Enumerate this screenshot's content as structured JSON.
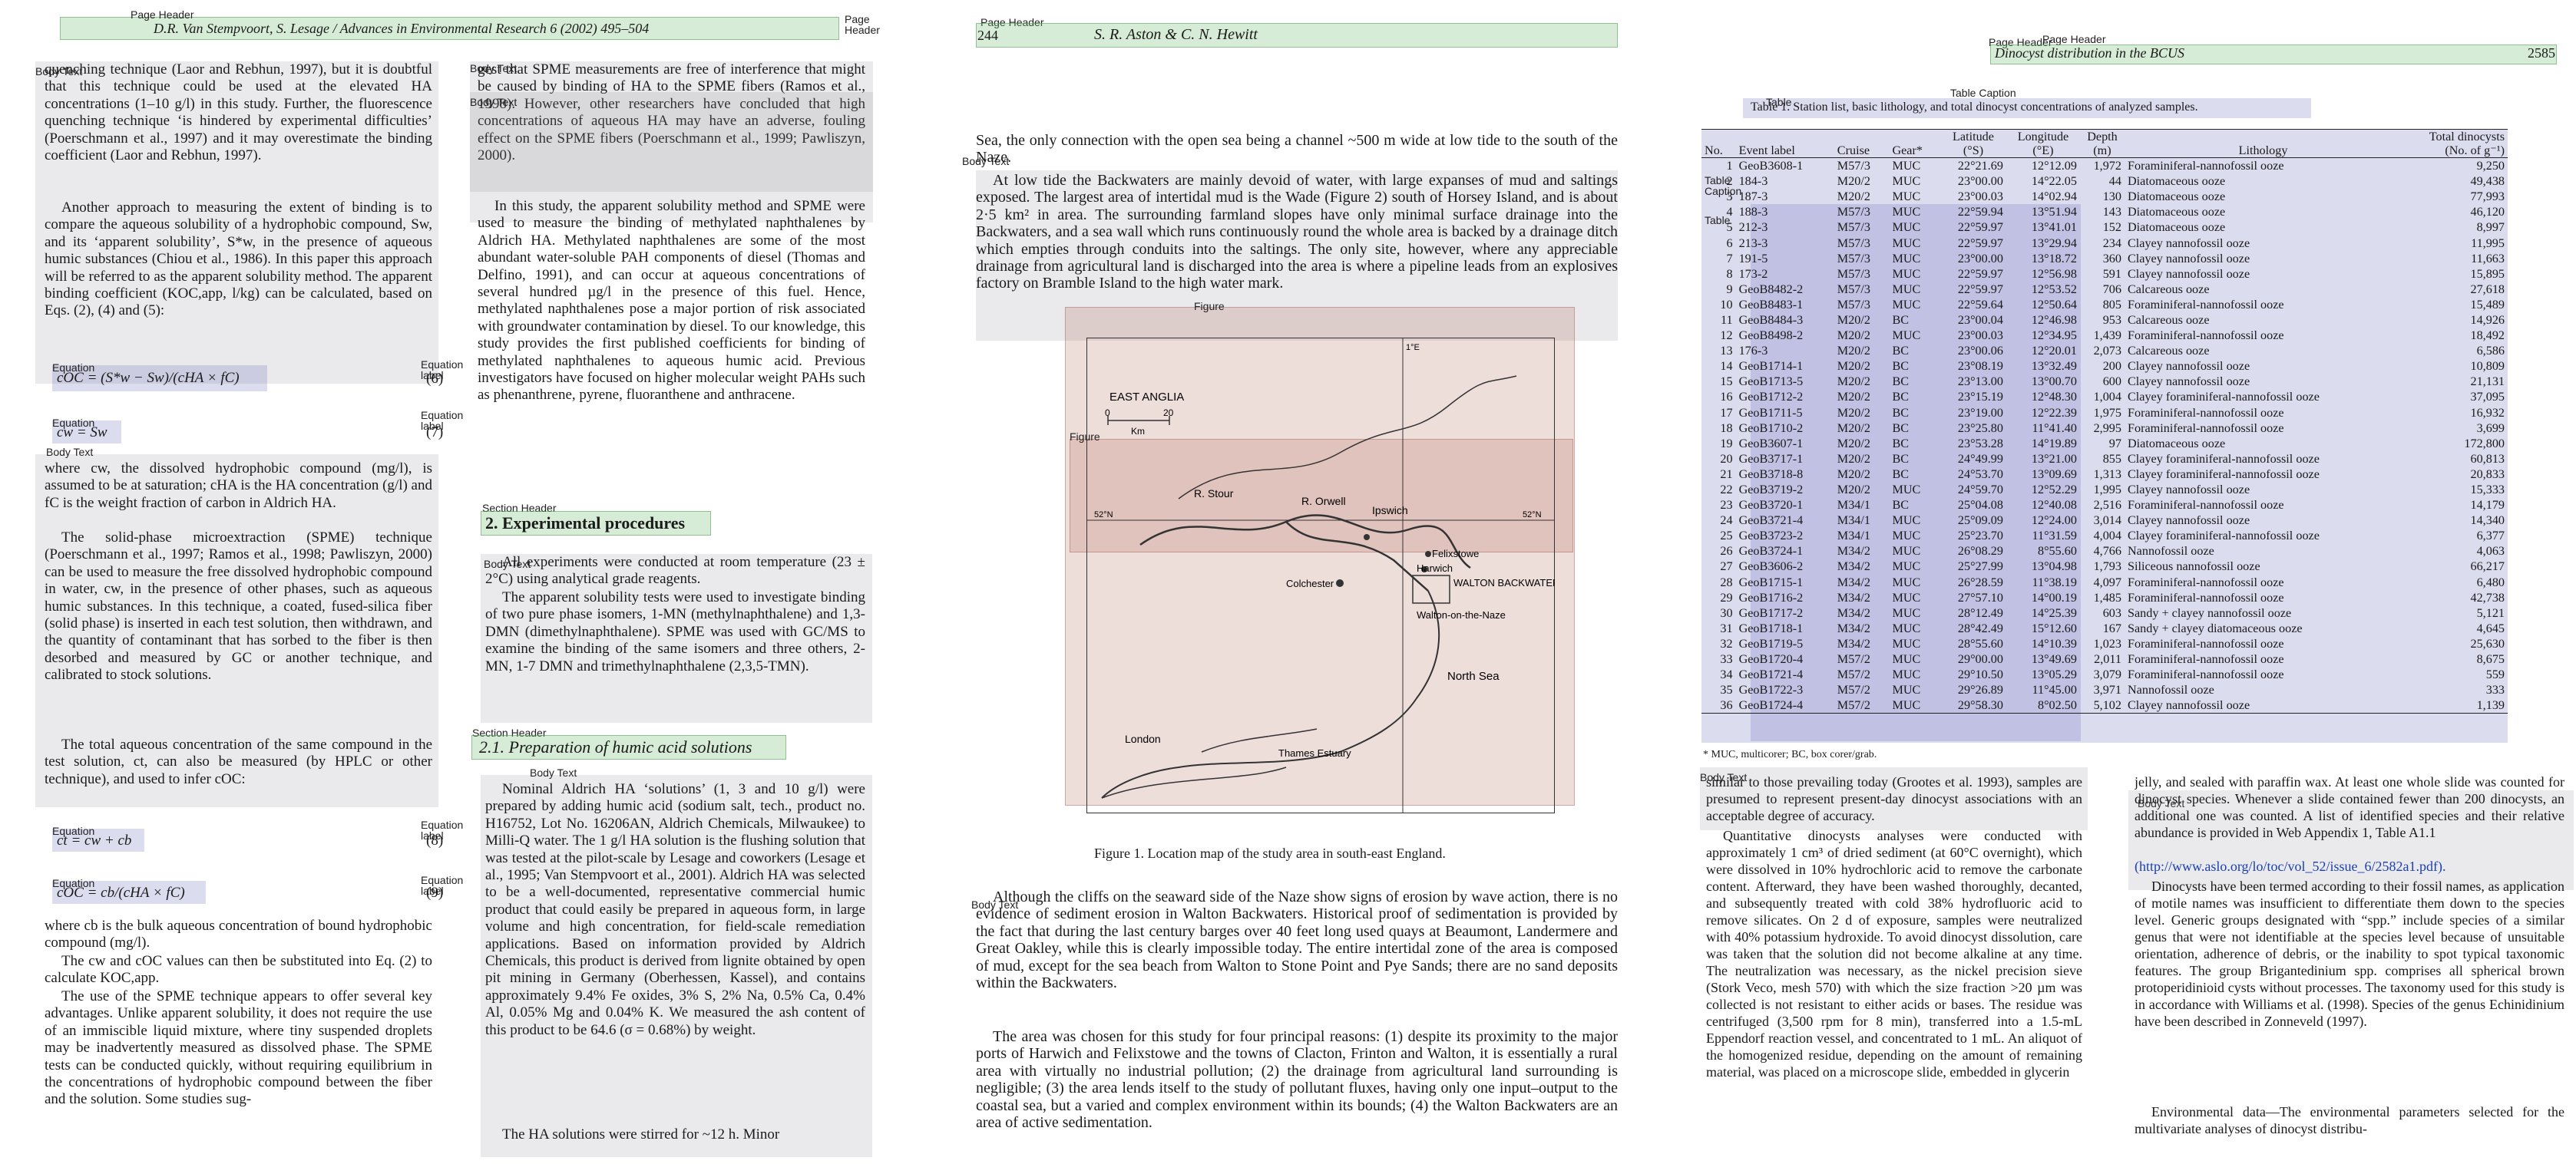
{
  "layout_labels": {
    "page_header": "Page Header",
    "body_text": "Body Text",
    "equation": "Equation",
    "equation_label": "Equation label",
    "section_header": "Section Header",
    "figure": "Figure",
    "table": "Table",
    "table_caption": "Table Caption"
  },
  "page1": {
    "header": "D.R. Van Stempvoort, S. Lesage / Advances in Environmental Research 6 (2002) 495–504",
    "left_col_1": "quenching technique (Laor and Rebhun, 1997), but it is doubtful that this technique could be used at the elevated HA concentrations (1–10 g/l) in this study. Further, the fluorescence quenching technique ‘is hindered by experimental difficulties’ (Poerschmann et al., 1997) and it may overestimate the binding coefficient (Laor and Rebhun, 1997).",
    "left_col_2": "Another approach to measuring the extent of binding is to compare the aqueous solubility of a hydrophobic compound, Sw, and its ‘apparent solubility’, S*w, in the presence of aqueous humic substances (Chiou et al., 1986). In this paper this approach will be referred to as the apparent solubility method. The apparent binding coefficient (KOC,app, l/kg) can be calculated, based on Eqs. (2), (4) and (5):",
    "eq1": "cOC = (S*w − Sw)/(cHA × fC)",
    "eq2": "cw = Sw",
    "left_col_3": "where cw, the dissolved hydrophobic compound (mg/l), is assumed to be at saturation; cHA is the HA concentration (g/l) and fC is the weight fraction of carbon in Aldrich HA.",
    "left_col_4": "The solid-phase microextraction (SPME) technique (Poerschmann et al., 1997; Ramos et al., 1998; Pawliszyn, 2000) can be used to measure the free dissolved hydrophobic compound in water, cw, in the presence of other phases, such as aqueous humic substances. In this technique, a coated, fused-silica fiber (solid phase) is inserted in each test solution, then withdrawn, and the quantity of contaminant that has sorbed to the fiber is then desorbed and measured by GC or another technique, and calibrated to stock solutions.",
    "left_col_5": "The total aqueous concentration of the same compound in the test solution, ct, can also be measured (by HPLC or other technique), and used to infer cOC:",
    "eq3": "ct = cw + cb",
    "eq4": "cOC = cb/(cHA × fC)",
    "left_col_6": "where cb is the bulk aqueous concentration of bound hydrophobic compound (mg/l).",
    "left_col_7": "The cw and cOC values can then be substituted into Eq. (2) to calculate KOC,app.",
    "left_col_8": "The use of the SPME technique appears to offer several key advantages. Unlike apparent solubility, it does not require the use of an immiscible liquid mixture, where tiny suspended droplets may be inadvertently measured as dissolved phase. The SPME tests can be conducted quickly, without requiring equilibrium in the concentrations of hydrophobic compound between the fiber and the solution. Some studies sug-",
    "right_col_1": "gest that SPME measurements are free of interference that might be caused by binding of HA to the SPME fibers (Ramos et al., 1998). However, other researchers have concluded that high concentrations of aqueous HA may have an adverse, fouling effect on the SPME fibers (Poerschmann et al., 1999; Pawliszyn, 2000).",
    "right_col_2": "In this study, the apparent solubility method and SPME were used to measure the binding of methylated naphthalenes by Aldrich HA. Methylated naphthalenes are some of the most abundant water-soluble PAH components of diesel (Thomas and Delfino, 1991), and can occur at aqueous concentrations of several hundred µg/l in the presence of this fuel. Hence, methylated naphthalenes pose a major portion of risk associated with groundwater contamination by diesel. To our knowledge, this study provides the first published coefficients for binding of methylated naphthalenes to aqueous humic acid. Previous investigators have focused on higher molecular weight PAHs such as phenanthrene, pyrene, fluoranthene and anthracene.",
    "section2": "2. Experimental procedures",
    "right_col_3": "All experiments were conducted at room temperature (23 ± 2°C) using analytical grade reagents.",
    "right_col_4": "The apparent solubility tests were used to investigate binding of two pure phase isomers, 1-MN (methylnaphthalene) and 1,3-DMN (dimethylnaphthalene). SPME was used with GC/MS to examine the binding of the same isomers and three others, 2-MN, 1-7 DMN and trimethylnaphthalene (2,3,5-TMN).",
    "section21": "2.1. Preparation of humic acid solutions",
    "right_col_5": "Nominal Aldrich HA ‘solutions’ (1, 3 and 10 g/l) were prepared by adding humic acid (sodium salt, tech., product no. H16752, Lot No. 16206AN, Aldrich Chemicals, Milwaukee) to Milli-Q water. The 1 g/l HA solution is the flushing solution that was tested at the pilot-scale by Lesage and coworkers (Lesage et al., 1995; Van Stempvoort et al., 2001). Aldrich HA was selected to be a well-documented, representative commercial humic product that could easily be prepared in aqueous form, in large volume and high concentration, for field-scale remediation applications. Based on information provided by Aldrich Chemicals, this product is derived from lignite obtained by open pit mining in Germany (Oberhessen, Kassel), and contains approximately 9.4% Fe oxides, 3% S, 2% Na, 0.5% Ca, 0.4% Al, 0.05% Mg and 0.04% K. We measured the ash content of this product to be 64.6 (σ = 0.68%) by weight.",
    "right_col_6": "The HA solutions were stirred for ~12 h. Minor"
  },
  "page2": {
    "page_number": "244",
    "header": "S. R. Aston & C. N. Hewitt",
    "para1": "Sea, the only connection with the open sea being a channel ~500 m wide at low tide to the south of the Naze.",
    "para2": "At low tide the Backwaters are mainly devoid of water, with large expanses of mud and saltings exposed. The largest area of intertidal mud is the Wade (Figure 2) south of Horsey Island, and is about 2·5 km² in area. The surrounding farmland slopes have only minimal surface drainage into the Backwaters, and a sea wall which runs continuously round the whole area is backed by a drainage ditch which empties through conduits into the saltings. The only site, however, where any appreciable drainage from agricultural land is discharged into the area is where a pipeline leads from an explosives factory on Bramble Island to the high water mark.",
    "map": {
      "region": "EAST ANGLIA",
      "scale_0": "0",
      "scale_20": "20",
      "scale_unit": "Km",
      "r_stour": "R. Stour",
      "r_orwell": "R. Orwell",
      "ipswich": "Ipswich",
      "felixstowe": "Felixstowe",
      "harwich": "Harwich",
      "colchester": "Colchester",
      "walton_backwaters": "WALTON BACKWATERS",
      "walton_naze": "Walton-on-the-Naze",
      "north_sea": "North Sea",
      "london": "London",
      "thames": "Thames Estuary",
      "lat": "52°N",
      "lon": "1°E"
    },
    "figure_caption": "Figure 1. Location map of the study area in south-east England.",
    "para3": "Although the cliffs on the seaward side of the Naze show signs of erosion by wave action, there is no evidence of sediment erosion in Walton Backwaters. Historical proof of sedimentation is provided by the fact that during the last century barges over 40 feet long used quays at Beaumont, Landermere and Great Oakley, while this is clearly impossible today. The entire intertidal zone of the area is composed of mud, except for the sea beach from Walton to Stone Point and Pye Sands; there are no sand deposits within the Backwaters.",
    "para4": "The area was chosen for this study for four principal reasons: (1) despite its proximity to the major ports of Harwich and Felixstowe and the towns of Clacton, Frinton and Walton, it is essentially a rural area with virtually no industrial pollution; (2) the drainage from agricultural land surrounding is negligible; (3) the area lends itself to the study of pollutant fluxes, having only one input–output to the coastal sea, but a varied and complex environment within its bounds; (4) the Walton Backwaters are an area of active sedimentation."
  },
  "page3": {
    "header": "Dinocyst distribution in the BCUS",
    "page_number": "2585",
    "table_caption": "Table 1. Station list, basic lithology, and total dinocyst concentrations of analyzed samples.",
    "table_headers": [
      "No.",
      "Event label",
      "Cruise",
      "Gear*",
      "Latitude (°S)",
      "Longitude (°E)",
      "Depth (m)",
      "Lithology",
      "Total dinocysts (No. of g⁻¹)"
    ],
    "table_rows": [
      [
        "1",
        "GeoB3608-1",
        "M57/3",
        "MUC",
        "22°21.69",
        "12°12.09",
        "1,972",
        "Foraminiferal-nannofossil ooze",
        "9,250"
      ],
      [
        "2",
        "184-3",
        "M20/2",
        "MUC",
        "23°00.00",
        "14°22.05",
        "44",
        "Diatomaceous ooze",
        "49,438"
      ],
      [
        "3",
        "187-3",
        "M20/2",
        "MUC",
        "23°00.03",
        "14°02.94",
        "130",
        "Diatomaceous ooze",
        "77,993"
      ],
      [
        "4",
        "188-3",
        "M57/3",
        "MUC",
        "22°59.94",
        "13°51.94",
        "143",
        "Diatomaceous ooze",
        "46,120"
      ],
      [
        "5",
        "212-3",
        "M57/3",
        "MUC",
        "22°59.97",
        "13°41.01",
        "152",
        "Diatomaceous ooze",
        "8,997"
      ],
      [
        "6",
        "213-3",
        "M57/3",
        "MUC",
        "22°59.97",
        "13°29.94",
        "234",
        "Clayey nannofossil ooze",
        "11,995"
      ],
      [
        "7",
        "191-5",
        "M57/3",
        "MUC",
        "23°00.00",
        "13°18.72",
        "360",
        "Clayey nannofossil ooze",
        "11,663"
      ],
      [
        "8",
        "173-2",
        "M57/3",
        "MUC",
        "22°59.97",
        "12°56.98",
        "591",
        "Clayey nannofossil ooze",
        "15,895"
      ],
      [
        "9",
        "GeoB8482-2",
        "M57/3",
        "MUC",
        "22°59.97",
        "12°53.52",
        "706",
        "Calcareous ooze",
        "27,618"
      ],
      [
        "10",
        "GeoB8483-1",
        "M57/3",
        "MUC",
        "22°59.64",
        "12°50.64",
        "805",
        "Foraminiferal-nannofossil ooze",
        "15,489"
      ],
      [
        "11",
        "GeoB8484-3",
        "M20/2",
        "BC",
        "23°00.04",
        "12°46.98",
        "953",
        "Calcareous ooze",
        "14,926"
      ],
      [
        "12",
        "GeoB8498-2",
        "M20/2",
        "MUC",
        "23°00.03",
        "12°34.95",
        "1,439",
        "Foraminiferal-nannofossil ooze",
        "18,492"
      ],
      [
        "13",
        "176-3",
        "M20/2",
        "BC",
        "23°00.06",
        "12°20.01",
        "2,073",
        "Calcareous ooze",
        "6,586"
      ],
      [
        "14",
        "GeoB1714-1",
        "M20/2",
        "BC",
        "23°08.19",
        "13°32.49",
        "200",
        "Clayey nannofossil ooze",
        "10,809"
      ],
      [
        "15",
        "GeoB1713-5",
        "M20/2",
        "BC",
        "23°13.00",
        "13°00.70",
        "600",
        "Clayey nannofossil ooze",
        "21,131"
      ],
      [
        "16",
        "GeoB1712-2",
        "M20/2",
        "BC",
        "23°15.19",
        "12°48.30",
        "1,004",
        "Clayey foraminiferal-nannofossil ooze",
        "37,095"
      ],
      [
        "17",
        "GeoB1711-5",
        "M20/2",
        "BC",
        "23°19.00",
        "12°22.39",
        "1,975",
        "Foraminiferal-nannofossil ooze",
        "16,932"
      ],
      [
        "18",
        "GeoB1710-2",
        "M20/2",
        "BC",
        "23°25.80",
        "11°41.40",
        "2,995",
        "Foraminiferal-nannofossil ooze",
        "3,699"
      ],
      [
        "19",
        "GeoB3607-1",
        "M20/2",
        "BC",
        "23°53.28",
        "14°19.89",
        "97",
        "Diatomaceous ooze",
        "172,800"
      ],
      [
        "20",
        "GeoB3717-1",
        "M20/2",
        "BC",
        "24°49.99",
        "13°21.00",
        "855",
        "Clayey foraminiferal-nannofossil ooze",
        "60,813"
      ],
      [
        "21",
        "GeoB3718-8",
        "M20/2",
        "BC",
        "24°53.70",
        "13°09.69",
        "1,313",
        "Clayey foraminiferal-nannofossil ooze",
        "20,833"
      ],
      [
        "22",
        "GeoB3719-2",
        "M20/2",
        "MUC",
        "24°59.70",
        "12°52.29",
        "1,995",
        "Clayey nannofossil ooze",
        "15,333"
      ],
      [
        "23",
        "GeoB3720-1",
        "M34/1",
        "BC",
        "25°04.08",
        "12°40.08",
        "2,516",
        "Foraminiferal-nannofossil ooze",
        "14,179"
      ],
      [
        "24",
        "GeoB3721-4",
        "M34/1",
        "MUC",
        "25°09.09",
        "12°24.00",
        "3,014",
        "Clayey nannofossil ooze",
        "14,340"
      ],
      [
        "25",
        "GeoB3723-2",
        "M34/1",
        "MUC",
        "25°23.70",
        "11°31.59",
        "4,004",
        "Clayey foraminiferal-nannofossil ooze",
        "6,377"
      ],
      [
        "26",
        "GeoB3724-1",
        "M34/2",
        "MUC",
        "26°08.29",
        "8°55.60",
        "4,766",
        "Nannofossil ooze",
        "4,063"
      ],
      [
        "27",
        "GeoB3606-2",
        "M34/2",
        "MUC",
        "25°27.99",
        "13°04.98",
        "1,793",
        "Siliceous nannofossil ooze",
        "66,217"
      ],
      [
        "28",
        "GeoB1715-1",
        "M34/2",
        "MUC",
        "26°28.59",
        "11°38.19",
        "4,097",
        "Foraminiferal-nannofossil ooze",
        "6,480"
      ],
      [
        "29",
        "GeoB1716-2",
        "M34/2",
        "MUC",
        "27°57.10",
        "14°00.19",
        "1,485",
        "Foraminiferal-nannofossil ooze",
        "42,738"
      ],
      [
        "30",
        "GeoB1717-2",
        "M34/2",
        "MUC",
        "28°12.49",
        "14°25.39",
        "603",
        "Sandy + clayey nannofossil ooze",
        "5,121"
      ],
      [
        "31",
        "GeoB1718-1",
        "M34/2",
        "MUC",
        "28°42.49",
        "15°12.60",
        "167",
        "Sandy + clayey diatomaceous ooze",
        "4,645"
      ],
      [
        "32",
        "GeoB1719-5",
        "M34/2",
        "MUC",
        "28°55.60",
        "14°10.39",
        "1,023",
        "Foraminiferal-nannofossil ooze",
        "25,630"
      ],
      [
        "33",
        "GeoB1720-4",
        "M57/2",
        "MUC",
        "29°00.00",
        "13°49.69",
        "2,011",
        "Foraminiferal-nannofossil ooze",
        "8,675"
      ],
      [
        "34",
        "GeoB1721-4",
        "M57/2",
        "MUC",
        "29°10.50",
        "13°05.29",
        "3,079",
        "Foraminiferal-nannofossil ooze",
        "559"
      ],
      [
        "35",
        "GeoB1722-3",
        "M57/2",
        "MUC",
        "29°26.89",
        "11°45.00",
        "3,971",
        "Nannofossil ooze",
        "333"
      ],
      [
        "36",
        "GeoB1724-4",
        "M57/2",
        "MUC",
        "29°58.30",
        "8°02.50",
        "5,102",
        "Clayey nannofossil ooze",
        "1,139"
      ]
    ],
    "table_footnote": "* MUC, multicorer; BC, box corer/grab.",
    "left_1": "similar to those prevailing today (Grootes et al. 1993), samples are presumed to represent present-day dinocyst associations with an acceptable degree of accuracy.",
    "left_2": "Quantitative dinocysts analyses were conducted with approximately 1 cm³ of dried sediment (at 60°C overnight), which were dissolved in 10% hydrochloric acid to remove the carbonate content. Afterward, they have been washed thoroughly, decanted, and subsequently treated with cold 38% hydrofluoric acid to remove silicates. On 2 d of exposure, samples were neutralized with 40% potassium hydroxide. To avoid dinocyst dissolution, care was taken that the solution did not become alkaline at any time. The neutralization was necessary, as the nickel precision sieve (Stork Veco, mesh 570) with which the size fraction >20 µm was collected is not resistant to either acids or bases. The residue was centrifuged (3,500 rpm for 8 min), transferred into a 1.5-mL Eppendorf reaction vessel, and concentrated to 1 mL. An aliquot of the homogenized residue, depending on the amount of remaining material, was placed on a microscope slide, embedded in glycerin",
    "right_1": "jelly, and sealed with paraffin wax. At least one whole slide was counted for dinocyst species. Whenever a slide contained fewer than 200 dinocysts, an additional one was counted. A list of identified species and their relative abundance is provided in Web Appendix 1, Table A1.1",
    "right_link": "(http://www.aslo.org/lo/toc/vol_52/issue_6/2582a1.pdf).",
    "right_2": "Dinocysts have been termed according to their fossil names, as application of motile names was insufficient to differentiate them down to the species level. Generic groups designated with “spp.” include species of a similar genus that were not identifiable at the species level because of unsuitable orientation, adherence of debris, or the inability to spot typical taxonomic features. The group Brigantedinium spp. comprises all spherical brown protoperidinioid cysts without processes. The taxonomy used for this study is in accordance with Williams et al. (1998). Species of the genus Echinidinium have been described in Zonneveld (1997).",
    "right_3": "Environmental data—The environmental parameters selected for the multivariate analyses of dinocyst distribu-"
  }
}
